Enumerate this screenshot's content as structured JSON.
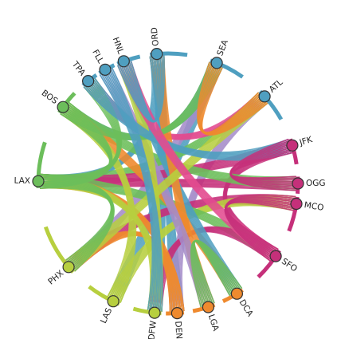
{
  "diagram": {
    "type": "chord",
    "palette": {
      "teal": "#4f9fc0",
      "magenta": "#c5307a",
      "green": "#6cbe5b",
      "lime": "#b7cf3f",
      "orange": "#ef8a2e",
      "purple": "#a48cc9",
      "pink": "#e34b8f"
    },
    "nodes": [
      {
        "code": "ORD",
        "color": "#4f9fc0"
      },
      {
        "code": "SEA",
        "color": "#4f9fc0"
      },
      {
        "code": "ATL",
        "color": "#4f9fc0"
      },
      {
        "code": "JFK",
        "color": "#c5307a"
      },
      {
        "code": "OGG",
        "color": "#c5307a"
      },
      {
        "code": "MCO",
        "color": "#c5307a"
      },
      {
        "code": "SFO",
        "color": "#c5307a"
      },
      {
        "code": "DCA",
        "color": "#ef8a2e"
      },
      {
        "code": "LGA",
        "color": "#ef8a2e"
      },
      {
        "code": "DEN",
        "color": "#ef8a2e"
      },
      {
        "code": "DFW",
        "color": "#b7cf3f"
      },
      {
        "code": "LAS",
        "color": "#b7cf3f"
      },
      {
        "code": "PHX",
        "color": "#b7cf3f"
      },
      {
        "code": "LAX",
        "color": "#6cbe5b"
      },
      {
        "code": "BOS",
        "color": "#6cbe5b"
      },
      {
        "code": "TPA",
        "color": "#4f9fc0"
      },
      {
        "code": "FLL",
        "color": "#4f9fc0"
      },
      {
        "code": "HNL",
        "color": "#4f9fc0"
      }
    ],
    "links": [
      {
        "source": "ORD",
        "target": "LAX",
        "color": "#4f9fc0"
      },
      {
        "source": "ORD",
        "target": "DEN",
        "color": "#4f9fc0"
      },
      {
        "source": "ORD",
        "target": "DFW",
        "color": "#4f9fc0"
      },
      {
        "source": "SEA",
        "target": "LAS",
        "color": "#4f9fc0"
      },
      {
        "source": "SEA",
        "target": "PHX",
        "color": "#a48cc9"
      },
      {
        "source": "SEA",
        "target": "BOS",
        "color": "#4f9fc0"
      },
      {
        "source": "ATL",
        "target": "LAX",
        "color": "#6cbe5b"
      },
      {
        "source": "ATL",
        "target": "DEN",
        "color": "#a48cc9"
      },
      {
        "source": "ATL",
        "target": "TPA",
        "color": "#e34b8f"
      },
      {
        "source": "JFK",
        "target": "LAX",
        "color": "#c5307a"
      },
      {
        "source": "JFK",
        "target": "SFO",
        "color": "#c5307a"
      },
      {
        "source": "OGG",
        "target": "LAX",
        "color": "#c5307a"
      },
      {
        "source": "OGG",
        "target": "BOS",
        "color": "#6cbe5b"
      },
      {
        "source": "MCO",
        "target": "PHX",
        "color": "#c5307a"
      },
      {
        "source": "MCO",
        "target": "LAS",
        "color": "#b7cf3f"
      },
      {
        "source": "SFO",
        "target": "LAX",
        "color": "#6cbe5b"
      },
      {
        "source": "SFO",
        "target": "DFW",
        "color": "#c5307a"
      },
      {
        "source": "DCA",
        "target": "BOS",
        "color": "#ef8a2e"
      },
      {
        "source": "DCA",
        "target": "HNL",
        "color": "#4f9fc0"
      },
      {
        "source": "LGA",
        "target": "ORD",
        "color": "#ef8a2e"
      },
      {
        "source": "LGA",
        "target": "FLL",
        "color": "#a48cc9"
      },
      {
        "source": "DEN",
        "target": "LAX",
        "color": "#ef8a2e"
      },
      {
        "source": "DEN",
        "target": "PHX",
        "color": "#ef8a2e"
      },
      {
        "source": "DFW",
        "target": "LAX",
        "color": "#b7cf3f"
      },
      {
        "source": "DFW",
        "target": "HNL",
        "color": "#b7cf3f"
      },
      {
        "source": "LAS",
        "target": "BOS",
        "color": "#b7cf3f"
      },
      {
        "source": "PHX",
        "target": "ATL",
        "color": "#b7cf3f"
      },
      {
        "source": "LAX",
        "target": "TPA",
        "color": "#6cbe5b"
      },
      {
        "source": "BOS",
        "target": "SEA",
        "color": "#6cbe5b"
      },
      {
        "source": "TPA",
        "target": "JFK",
        "color": "#4f9fc0"
      },
      {
        "source": "FLL",
        "target": "DFW",
        "color": "#4f9fc0"
      },
      {
        "source": "HNL",
        "target": "SFO",
        "color": "#e34b8f"
      },
      {
        "source": "ORD",
        "target": "HNL",
        "color": "#4f9fc0"
      },
      {
        "source": "SEA",
        "target": "ATL",
        "color": "#ef8a2e"
      },
      {
        "source": "JFK",
        "target": "OGG",
        "color": "#c5307a"
      },
      {
        "source": "MCO",
        "target": "SFO",
        "color": "#c5307a"
      },
      {
        "source": "DCA",
        "target": "LGA",
        "color": "#6cbe5b"
      },
      {
        "source": "LAX",
        "target": "PHX",
        "color": "#6cbe5b"
      },
      {
        "source": "BOS",
        "target": "LAX",
        "color": "#6cbe5b"
      }
    ]
  }
}
